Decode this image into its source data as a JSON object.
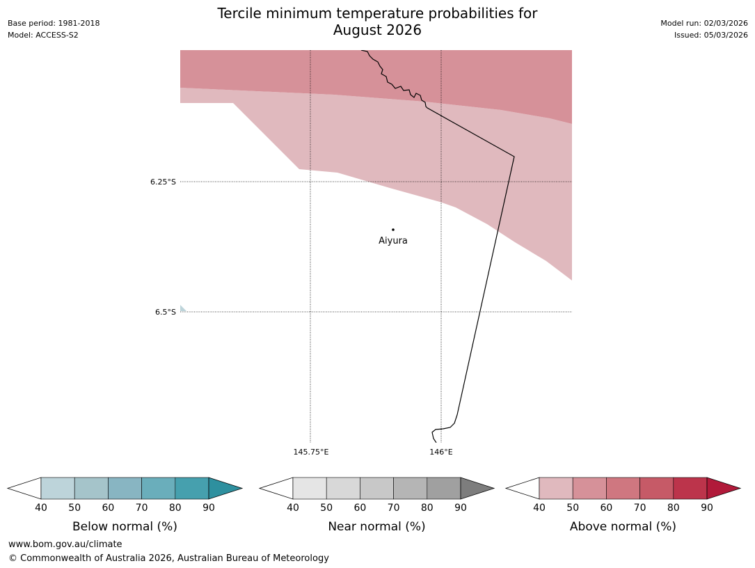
{
  "header": {
    "title_line1": "Tercile minimum temperature probabilities for",
    "title_line2": "August 2026",
    "base_period": "Base period: 1981-2018",
    "model": "Model: ACCESS-S2",
    "model_run": "Model run: 02/03/2026",
    "issued": "Issued: 05/03/2026"
  },
  "map": {
    "lat_labels": [
      "6.25°S",
      "6.5°S"
    ],
    "lon_labels": [
      "145.75°E",
      "146°E"
    ],
    "place_label": "Aiyura"
  },
  "colorbars": [
    {
      "name": "below",
      "label": "Below normal (%)",
      "ticks": [
        "40",
        "50",
        "60",
        "70",
        "80",
        "90"
      ],
      "colors": [
        "#ffffff",
        "#bdd4da",
        "#a5c4ca",
        "#88b5c2",
        "#6aaebb",
        "#46a0ae",
        "#2e909f"
      ]
    },
    {
      "name": "near",
      "label": "Near normal (%)",
      "ticks": [
        "40",
        "50",
        "60",
        "70",
        "80",
        "90"
      ],
      "colors": [
        "#ffffff",
        "#e5e5e5",
        "#d8d8d8",
        "#c8c8c8",
        "#b5b5b5",
        "#a0a0a0",
        "#7d7d7d"
      ]
    },
    {
      "name": "above",
      "label": "Above normal (%)",
      "ticks": [
        "40",
        "50",
        "60",
        "70",
        "80",
        "90"
      ],
      "colors": [
        "#ffffff",
        "#e0b9be",
        "#d69199",
        "#cf7780",
        "#c65a67",
        "#bc344b",
        "#b11a3a"
      ]
    }
  ],
  "footer": {
    "url": "www.bom.gov.au/climate",
    "copyright": "© Commonwealth of Australia 2026, Australian Bureau of Meteorology"
  }
}
